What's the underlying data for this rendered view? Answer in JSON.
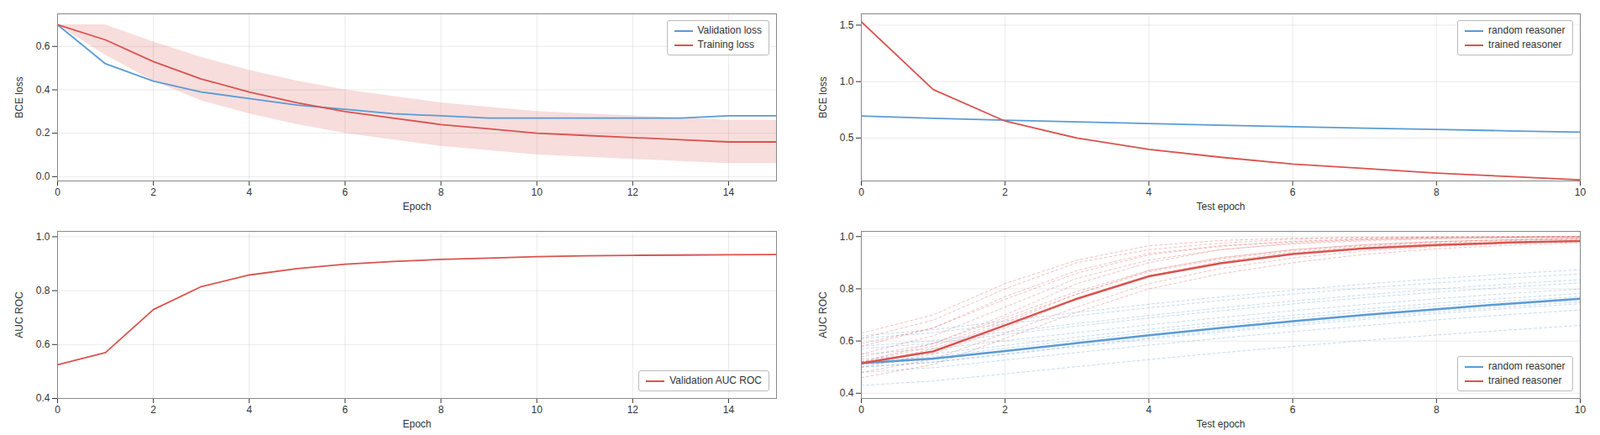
{
  "chart_data": [
    {
      "type": "line",
      "xlabel": "Epoch",
      "ylabel": "BCE loss",
      "x": [
        0,
        1,
        2,
        3,
        4,
        5,
        6,
        7,
        8,
        9,
        10,
        11,
        12,
        13,
        14,
        15
      ],
      "xlim": [
        0,
        15
      ],
      "ylim": [
        -0.02,
        0.75
      ],
      "xticks": [
        0,
        2,
        4,
        6,
        8,
        10,
        12,
        14
      ],
      "yticks": [
        {
          "value": 0,
          "label": "0.0"
        },
        0.2,
        0.4,
        0.6
      ],
      "grid": true,
      "legend": "upper right",
      "series": [
        {
          "name": "Validation loss",
          "color": "#5b9bd5",
          "values": [
            0.7,
            0.52,
            0.44,
            0.39,
            0.36,
            0.33,
            0.31,
            0.29,
            0.28,
            0.27,
            0.27,
            0.27,
            0.27,
            0.27,
            0.28,
            0.28
          ]
        },
        {
          "name": "Training loss",
          "color": "#d9534f",
          "values": [
            0.7,
            0.63,
            0.53,
            0.45,
            0.39,
            0.34,
            0.3,
            0.27,
            0.24,
            0.22,
            0.2,
            0.19,
            0.18,
            0.17,
            0.16,
            0.16
          ],
          "lower": [
            0.7,
            0.56,
            0.44,
            0.35,
            0.29,
            0.24,
            0.2,
            0.17,
            0.14,
            0.12,
            0.1,
            0.09,
            0.08,
            0.07,
            0.06,
            0.06
          ],
          "upper": [
            0.7,
            0.7,
            0.62,
            0.55,
            0.49,
            0.44,
            0.4,
            0.37,
            0.34,
            0.32,
            0.3,
            0.29,
            0.28,
            0.27,
            0.26,
            0.26
          ]
        }
      ]
    },
    {
      "type": "line",
      "xlabel": "Epoch",
      "ylabel": "AUC ROC",
      "x": [
        0,
        1,
        2,
        3,
        4,
        5,
        6,
        7,
        8,
        9,
        10,
        11,
        12,
        13,
        14,
        15
      ],
      "xlim": [
        0,
        15
      ],
      "ylim": [
        0.4,
        1.02
      ],
      "xticks": [
        0,
        2,
        4,
        6,
        8,
        10,
        12,
        14
      ],
      "yticks": [
        0.4,
        0.6,
        0.8,
        {
          "value": 1,
          "label": "1.0"
        }
      ],
      "grid": true,
      "legend": "lower right",
      "series": [
        {
          "name": "Validation AUC ROC",
          "color": "#d9534f",
          "values": [
            0.525,
            0.57,
            0.73,
            0.815,
            0.858,
            0.882,
            0.898,
            0.908,
            0.916,
            0.921,
            0.926,
            0.929,
            0.931,
            0.932,
            0.933,
            0.934
          ]
        }
      ]
    },
    {
      "type": "line",
      "xlabel": "Test epoch",
      "ylabel": "BCE loss",
      "x": [
        0,
        1,
        2,
        3,
        4,
        5,
        6,
        7,
        8,
        9,
        10
      ],
      "xlim": [
        0,
        10
      ],
      "ylim": [
        0.12,
        1.6
      ],
      "xticks": [
        0,
        2,
        4,
        6,
        8,
        10
      ],
      "yticks": [
        0.5,
        {
          "value": 1,
          "label": "1.0"
        },
        1.5
      ],
      "grid": true,
      "legend": "upper right",
      "series": [
        {
          "name": "random reasoner",
          "color": "#5b9bd5",
          "values": [
            0.695,
            0.675,
            0.658,
            0.643,
            0.628,
            0.614,
            0.601,
            0.588,
            0.576,
            0.564,
            0.552
          ]
        },
        {
          "name": "trained reasoner",
          "color": "#d9534f",
          "values": [
            1.53,
            0.93,
            0.65,
            0.5,
            0.4,
            0.33,
            0.27,
            0.23,
            0.19,
            0.16,
            0.13
          ]
        }
      ]
    },
    {
      "type": "line",
      "xlabel": "Test epoch",
      "ylabel": "AUC ROC",
      "x": [
        0,
        1,
        2,
        3,
        4,
        5,
        6,
        7,
        8,
        9,
        10
      ],
      "xlim": [
        0,
        10
      ],
      "ylim": [
        0.38,
        1.02
      ],
      "xticks": [
        0,
        2,
        4,
        6,
        8,
        10
      ],
      "yticks": [
        0.4,
        0.6,
        0.8,
        {
          "value": 1,
          "label": "1.0"
        }
      ],
      "grid": true,
      "legend": "lower right",
      "series": [
        {
          "name": "random reasoner",
          "color": "#5b9bd5",
          "values": [
            0.515,
            0.533,
            0.562,
            0.592,
            0.622,
            0.65,
            0.676,
            0.7,
            0.722,
            0.743,
            0.762
          ],
          "kbs": [
            [
              0.52,
              0.54,
              0.572,
              0.603,
              0.634,
              0.662,
              0.688,
              0.712,
              0.734,
              0.753,
              0.77
            ],
            [
              0.5,
              0.518,
              0.548,
              0.578,
              0.607,
              0.634,
              0.659,
              0.683,
              0.705,
              0.725,
              0.743
            ],
            [
              0.61,
              0.632,
              0.665,
              0.697,
              0.727,
              0.755,
              0.78,
              0.803,
              0.823,
              0.841,
              0.857
            ],
            [
              0.55,
              0.57,
              0.601,
              0.632,
              0.662,
              0.69,
              0.716,
              0.74,
              0.762,
              0.782,
              0.799
            ],
            [
              0.48,
              0.498,
              0.527,
              0.556,
              0.584,
              0.611,
              0.636,
              0.659,
              0.681,
              0.701,
              0.719
            ],
            [
              0.5,
              0.52,
              0.551,
              0.582,
              0.612,
              0.64,
              0.666,
              0.69,
              0.712,
              0.732,
              0.75
            ],
            [
              0.53,
              0.551,
              0.583,
              0.615,
              0.645,
              0.673,
              0.699,
              0.723,
              0.745,
              0.764,
              0.782
            ],
            [
              0.58,
              0.601,
              0.634,
              0.667,
              0.698,
              0.727,
              0.753,
              0.777,
              0.799,
              0.818,
              0.835
            ],
            [
              0.43,
              0.447,
              0.474,
              0.502,
              0.529,
              0.555,
              0.579,
              0.602,
              0.623,
              0.642,
              0.66
            ],
            [
              0.62,
              0.643,
              0.677,
              0.71,
              0.741,
              0.769,
              0.795,
              0.818,
              0.839,
              0.857,
              0.873
            ],
            [
              0.51,
              0.529,
              0.559,
              0.589,
              0.619,
              0.647,
              0.673,
              0.697,
              0.719,
              0.739,
              0.757
            ],
            [
              0.57,
              0.592,
              0.625,
              0.657,
              0.688,
              0.716,
              0.742,
              0.766,
              0.787,
              0.806,
              0.823
            ]
          ]
        },
        {
          "name": "trained reasoner",
          "color": "#d9534f",
          "values": [
            0.515,
            0.56,
            0.66,
            0.762,
            0.848,
            0.898,
            0.933,
            0.955,
            0.968,
            0.977,
            0.983
          ],
          "kbs": [
            [
              0.52,
              0.59,
              0.7,
              0.82,
              0.9,
              0.95,
              0.975,
              0.988,
              0.994,
              0.997,
              0.999
            ],
            [
              0.5,
              0.55,
              0.65,
              0.76,
              0.85,
              0.905,
              0.94,
              0.962,
              0.975,
              0.984,
              0.99
            ],
            [
              0.61,
              0.68,
              0.8,
              0.9,
              0.95,
              0.975,
              0.99,
              0.996,
              0.998,
              0.999,
              1.0
            ],
            [
              0.55,
              0.62,
              0.73,
              0.84,
              0.91,
              0.95,
              0.972,
              0.984,
              0.991,
              0.995,
              0.998
            ],
            [
              0.48,
              0.53,
              0.63,
              0.73,
              0.82,
              0.878,
              0.918,
              0.945,
              0.962,
              0.974,
              0.982
            ],
            [
              0.51,
              0.57,
              0.67,
              0.78,
              0.87,
              0.918,
              0.95,
              0.969,
              0.981,
              0.988,
              0.993
            ],
            [
              0.54,
              0.59,
              0.69,
              0.79,
              0.87,
              0.92,
              0.95,
              0.969,
              0.981,
              0.988,
              0.993
            ],
            [
              0.59,
              0.65,
              0.76,
              0.86,
              0.93,
              0.963,
              0.98,
              0.99,
              0.995,
              0.997,
              0.999
            ],
            [
              0.46,
              0.51,
              0.61,
              0.71,
              0.8,
              0.858,
              0.9,
              0.932,
              0.953,
              0.967,
              0.977
            ],
            [
              0.63,
              0.7,
              0.82,
              0.91,
              0.965,
              0.985,
              0.994,
              0.997,
              0.999,
              1.0,
              1.0
            ],
            [
              0.52,
              0.58,
              0.68,
              0.78,
              0.865,
              0.914,
              0.946,
              0.966,
              0.979,
              0.987,
              0.992
            ],
            [
              0.58,
              0.65,
              0.77,
              0.87,
              0.935,
              0.965,
              0.982,
              0.991,
              0.996,
              0.998,
              0.999
            ]
          ]
        }
      ]
    }
  ]
}
